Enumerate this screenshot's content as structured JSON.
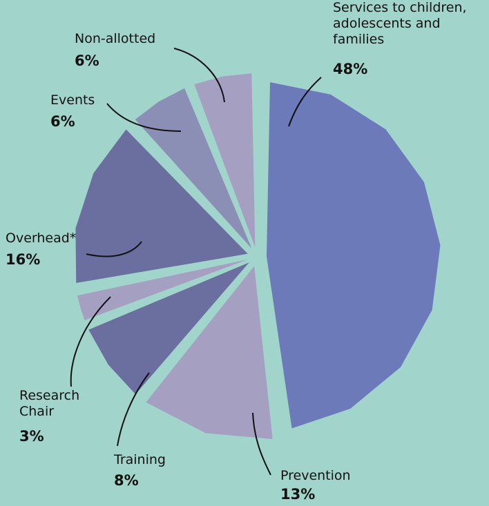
{
  "chart_data": {
    "type": "pie",
    "categories": [
      "Services to children, adolescents and families",
      "Prevention",
      "Training",
      "Research Chair",
      "Overhead*",
      "Events",
      "Non-allotted"
    ],
    "values": [
      48,
      13,
      8,
      3,
      16,
      6,
      6
    ],
    "value_labels": [
      "48%",
      "13%",
      "8%",
      "3%",
      "16%",
      "6%",
      "6%"
    ],
    "colors": [
      "#6d7aba",
      "#a59fc1",
      "#6a6fa0",
      "#a59fc1",
      "#6a6fa0",
      "#8c8fb5",
      "#a59fc1"
    ]
  }
}
